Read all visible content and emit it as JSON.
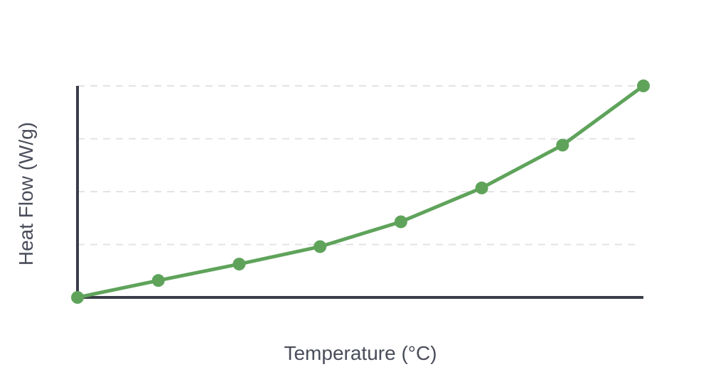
{
  "chart_data": {
    "type": "line",
    "title": "",
    "xlabel": "Temperature (°C)",
    "ylabel": "Heat Flow (W/g)",
    "x": [
      0,
      1,
      2,
      3,
      4,
      5,
      6,
      7
    ],
    "series": [
      {
        "values": [
          0.0,
          0.32,
          0.63,
          0.96,
          1.43,
          2.07,
          2.88,
          4.0
        ],
        "color": "#5fa35b"
      }
    ],
    "xlim": [
      0,
      7
    ],
    "ylim": [
      0,
      4
    ],
    "yticks": [
      0,
      1,
      2,
      3,
      4
    ],
    "grid": true,
    "legend": "none",
    "axis_color": "#3a3d4a",
    "grid_color": "#e3e3e3"
  }
}
